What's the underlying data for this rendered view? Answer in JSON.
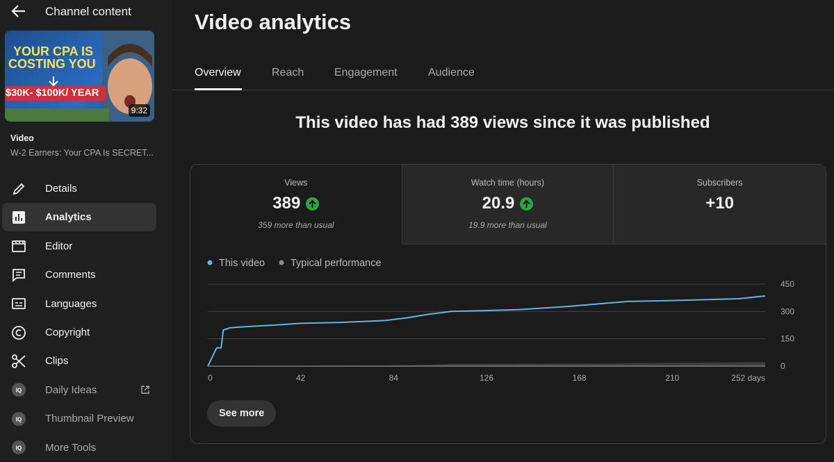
{
  "sidebar": {
    "back_title": "Channel content",
    "thumbnail": {
      "headline_1": "YOUR CPA IS",
      "headline_2": "COSTING YOU",
      "banner": "$30K- $100K/ YEAR",
      "duration": "9:32"
    },
    "video_label": "Video",
    "video_title": "W-2 Earners: Your CPA Is SECRET...",
    "nav": [
      "Details",
      "Analytics",
      "Editor",
      "Comments",
      "Languages",
      "Copyright",
      "Clips",
      "Daily Ideas",
      "Thumbnail Preview",
      "More Tools"
    ]
  },
  "header": {
    "title": "Video analytics",
    "tabs": [
      "Overview",
      "Reach",
      "Engagement",
      "Audience"
    ]
  },
  "summary": "This video has had 389 views since it was published",
  "metrics": [
    {
      "label": "Views",
      "value": "389",
      "note": "359 more than usual"
    },
    {
      "label": "Watch time (hours)",
      "value": "20.9",
      "note": "19.9 more than usual"
    },
    {
      "label": "Subscribers",
      "value": "+10"
    }
  ],
  "chart_data": {
    "type": "line",
    "x": [
      0,
      2,
      4,
      6,
      7,
      10,
      15,
      30,
      42,
      60,
      80,
      90,
      100,
      110,
      126,
      140,
      160,
      180,
      190,
      210,
      240,
      252
    ],
    "series": [
      {
        "name": "This video",
        "color": "#62b6e3",
        "values": [
          0,
          50,
          100,
          100,
          198,
          210,
          215,
          225,
          235,
          240,
          250,
          265,
          285,
          300,
          305,
          310,
          325,
          345,
          355,
          360,
          370,
          385
        ]
      },
      {
        "name": "Typical performance",
        "color": "#8e8e8e",
        "values": [
          0,
          0,
          1,
          1,
          1,
          1,
          1,
          2,
          2,
          3,
          4,
          5,
          7,
          12,
          12,
          13,
          14,
          15,
          16,
          18,
          21,
          22
        ]
      }
    ],
    "xlim": [
      0,
      252
    ],
    "xticks": [
      0,
      42,
      84,
      126,
      168,
      210,
      {
        "value": 252,
        "label": "252 days"
      }
    ],
    "ylim": [
      0,
      450
    ],
    "yticks": [
      0,
      150,
      300,
      450
    ],
    "grid": true
  },
  "button": "See more"
}
